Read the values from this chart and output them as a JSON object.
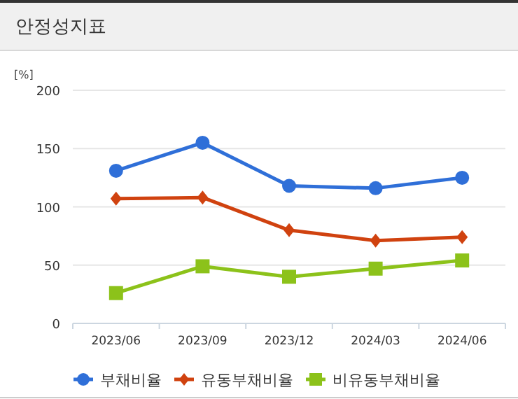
{
  "chart_data": {
    "type": "line",
    "title": "안정성지표",
    "ylabel": "[%]",
    "categories": [
      "2023/06",
      "2023/09",
      "2023/12",
      "2024/03",
      "2024/06"
    ],
    "series": [
      {
        "name": "부채비율",
        "color": "#2f6fd8",
        "marker": "circle",
        "values": [
          131,
          155,
          118,
          116,
          125
        ]
      },
      {
        "name": "유동부채비율",
        "color": "#d0420f",
        "marker": "diamond",
        "values": [
          107,
          108,
          80,
          71,
          74
        ]
      },
      {
        "name": "비유동부채비율",
        "color": "#8cc21a",
        "marker": "square",
        "values": [
          26,
          49,
          40,
          47,
          54
        ]
      }
    ],
    "ylim": [
      0,
      200
    ],
    "yticks": [
      0,
      50,
      100,
      150,
      200
    ],
    "grid": "y",
    "legend": "bottom"
  }
}
